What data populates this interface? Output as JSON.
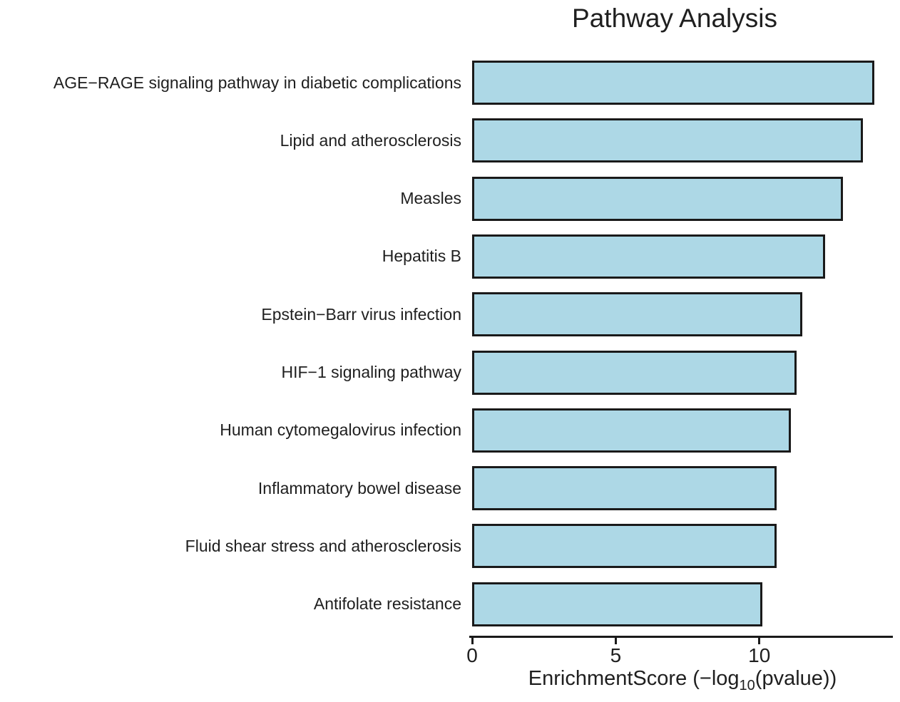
{
  "title": "Pathway Analysis",
  "chart_data": {
    "type": "bar",
    "orientation": "horizontal",
    "title": "Pathway Analysis",
    "categories": [
      "AGE−RAGE signaling pathway in diabetic complications",
      "Lipid and atherosclerosis",
      "Measles",
      "Hepatitis B",
      "Epstein−Barr virus infection",
      "HIF−1 signaling pathway",
      "Human cytomegalovirus infection",
      "Inflammatory bowel disease",
      "Fluid shear stress and atherosclerosis",
      "Antifolate resistance"
    ],
    "values": [
      14.0,
      13.6,
      12.9,
      12.3,
      11.5,
      11.3,
      11.1,
      10.6,
      10.6,
      10.1
    ],
    "xlabel": "EnrichmentScore (−log10(pvalue))",
    "xlabel_parts": {
      "prefix": "EnrichmentScore (−log",
      "sub": "10",
      "suffix": "(pvalue))"
    },
    "xlim": [
      0,
      14.6
    ],
    "xticks": [
      "0",
      "5",
      "10"
    ],
    "xtick_values": [
      0,
      5,
      10
    ],
    "grid": false,
    "legend": false,
    "bar_fill": "#ADD8E6",
    "bar_border": "#1a1a1a",
    "axis_color": "#1a1a1a",
    "text_color": "#1f1f1f",
    "background": "#ffffff"
  }
}
